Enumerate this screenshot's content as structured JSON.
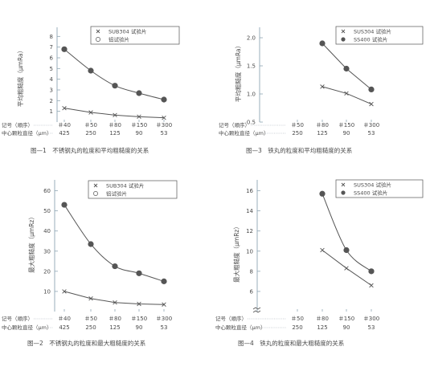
{
  "chart_data": [
    {
      "type": "line",
      "caption": "图—1　不锈钢丸的粒度和平均粗糙度的关系",
      "ylabel": "平均粗糙度（μmRa）",
      "ylim": [
        0,
        8
      ],
      "yticks": [
        "1",
        "2",
        "3",
        "4",
        "5",
        "6",
        "7",
        "8"
      ],
      "categories": [
        "＃40",
        "＃50",
        "＃80",
        "＃150",
        "＃300"
      ],
      "row_labels": [
        "记号（顺序）",
        "中心颗粒直径（μm）"
      ],
      "diameters": [
        "425",
        "250",
        "125",
        "90",
        "53"
      ],
      "legend": [
        "SUB304 试验片",
        "铝试验片"
      ],
      "series": [
        {
          "name": "SUB304 试验片",
          "marker": "x",
          "values": [
            1.3,
            0.9,
            0.65,
            0.5,
            0.4
          ]
        },
        {
          "name": "铝试验片",
          "marker": "dot",
          "values": [
            6.8,
            4.8,
            3.4,
            2.7,
            2.1
          ]
        }
      ]
    },
    {
      "type": "line",
      "caption": "图—3　铁丸的粒度和平均粗糙度的关系",
      "ylabel": "平均粗糙度（μmRa）",
      "ylim": [
        0.5,
        2.0
      ],
      "yticks": [
        "0.5",
        "1.0",
        "1.5",
        "2.0"
      ],
      "categories": [
        "＃50",
        "＃80",
        "＃150",
        "＃300"
      ],
      "row_labels": [
        "记号（顺序）",
        "中心颗粒直径（μm）"
      ],
      "diameters": [
        "250",
        "125",
        "90",
        "53"
      ],
      "legend": [
        "SUS304 试验片",
        "SS400 试验片"
      ],
      "series": [
        {
          "name": "SUS304 试验片",
          "marker": "x",
          "values": [
            null,
            1.13,
            1.01,
            0.82
          ]
        },
        {
          "name": "SS400 试验片",
          "marker": "dot",
          "values": [
            null,
            1.9,
            1.45,
            1.08
          ]
        }
      ]
    },
    {
      "type": "line",
      "caption": "图—2　不锈钢丸的粒度和最大粗糙度的关系",
      "ylabel": "最大粗糙度（μmRz）",
      "ylim": [
        0,
        60
      ],
      "yticks": [
        "10",
        "20",
        "30",
        "40",
        "50",
        "60"
      ],
      "categories": [
        "＃40",
        "＃50",
        "＃80",
        "＃150",
        "＃300"
      ],
      "row_labels": [
        "记号（顺序）",
        "中心颗粒直径（μm）"
      ],
      "diameters": [
        "425",
        "250",
        "125",
        "90",
        "53"
      ],
      "legend": [
        "SUB304 试验片",
        "铝试验片"
      ],
      "series": [
        {
          "name": "SUB304 试验片",
          "marker": "x",
          "values": [
            10,
            6.5,
            4.5,
            3.8,
            3.5
          ]
        },
        {
          "name": "铝试验片",
          "marker": "dot",
          "values": [
            53,
            33.5,
            22.5,
            19,
            15
          ]
        }
      ]
    },
    {
      "type": "line",
      "caption": "图—4　铁丸的粒度和最大粗糙度的关系",
      "ylabel": "最大粗糙度（μmRz）",
      "ylim": [
        4,
        16
      ],
      "yticks": [
        "6",
        "8",
        "10",
        "12",
        "14",
        "16"
      ],
      "categories": [
        "＃50",
        "＃80",
        "＃150",
        "＃300"
      ],
      "row_labels": [
        "记号（顺序）",
        "中心颗粒直径（μm）"
      ],
      "diameters": [
        "250",
        "125",
        "90",
        "53"
      ],
      "legend": [
        "SUS304 试验片",
        "SS400 试验片"
      ],
      "series": [
        {
          "name": "SUS304 试验片",
          "marker": "x",
          "values": [
            null,
            10.1,
            8.3,
            6.6
          ]
        },
        {
          "name": "SS400 试验片",
          "marker": "dot",
          "values": [
            null,
            15.7,
            10.1,
            8.0
          ]
        }
      ]
    }
  ]
}
